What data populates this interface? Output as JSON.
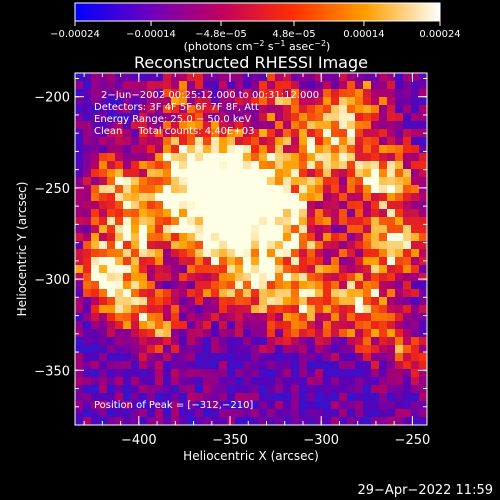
{
  "chart_data": {
    "type": "heatmap",
    "title": "Reconstructed RHESSI Image",
    "xlabel": "Heliocentric X (arcsec)",
    "ylabel": "Heliocentric Y (arcsec)",
    "xlim": [
      -435,
      -242
    ],
    "ylim": [
      -380,
      -187
    ],
    "xticks": [
      -400,
      -350,
      -300,
      -250
    ],
    "xtick_labels": [
      "−400",
      "−350",
      "−300",
      "−250"
    ],
    "yticks": [
      -200,
      -250,
      -300,
      -350
    ],
    "ytick_labels": [
      "−200",
      "−250",
      "−300",
      "−350"
    ],
    "colorbar": {
      "ticks": [
        -0.00024,
        -0.00014,
        -4.8e-05,
        4.8e-05,
        0.00014,
        0.00024
      ],
      "tick_labels": [
        "−0.00024",
        "−0.00014",
        "−4.8e−05",
        "4.8e−05",
        "0.00014",
        "0.00024"
      ],
      "label_main": "(photons cm",
      "label_exp1": "−2",
      "label_mid1": " s",
      "label_exp2": "−1",
      "label_mid2": " asec",
      "label_exp3": "−2",
      "label_end": ")",
      "colors": [
        "#0000ff",
        "#6a00c0",
        "#c00060",
        "#ff3000",
        "#ffa000",
        "#ffffff"
      ]
    },
    "annotations": [
      "2−Jun−2002 00:25:12.000 to 00:31:12.000",
      "Detectors: 3F 4F 5F 6F 7F 8F, Att",
      "Energy Range: 25.0 − 50.0 keV",
      "Clean     Total counts: 4.40E+03"
    ],
    "peak_label": "Position of Peak = [−312,−210]",
    "peak": [
      -312,
      -210
    ],
    "grid": false,
    "legend": "none"
  },
  "footer": {
    "timestamp": "29−Apr−2022 11:59"
  }
}
